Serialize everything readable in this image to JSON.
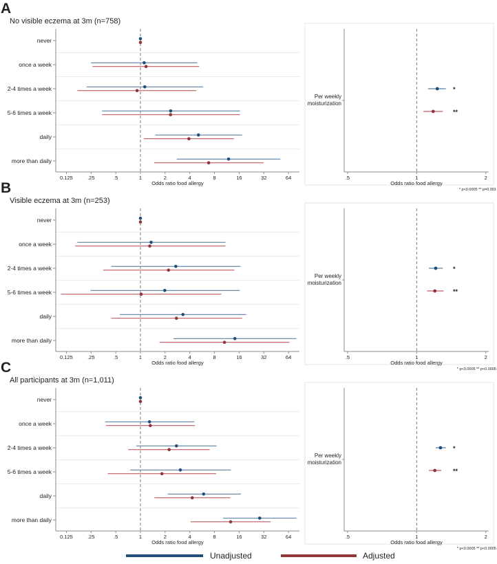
{
  "chart_data": [
    {
      "type": "forest",
      "panel_letter": "A",
      "title": "No visible eczema at 3m (n=758)",
      "categories": [
        "never",
        "once a week",
        "2-4 times a week",
        "5-6 times a week",
        "daily",
        "more than daily"
      ],
      "xlabel": "Odds ratio food allergy",
      "xticks": [
        "0.125",
        ".25",
        ".5",
        "1",
        "2",
        "4",
        "8",
        "16",
        "32",
        "64"
      ],
      "xtick_values": [
        0.125,
        0.25,
        0.5,
        1,
        2,
        4,
        8,
        16,
        32,
        64
      ],
      "series": [
        {
          "name": "Unadjusted",
          "or": [
            1,
            1.11,
            1.13,
            2.34,
            5.1,
            11.9
          ],
          "lo": [
            1,
            0.25,
            0.22,
            0.34,
            1.51,
            2.77
          ],
          "hi": [
            1,
            4.95,
            5.8,
            16.4,
            17.4,
            51
          ]
        },
        {
          "name": "Adjusted",
          "or": [
            1,
            1.17,
            0.91,
            2.33,
            3.9,
            6.8
          ],
          "lo": [
            1,
            0.26,
            0.17,
            0.34,
            1.1,
            1.47
          ],
          "hi": [
            1,
            5.2,
            4.8,
            16.4,
            13.8,
            31.8
          ]
        }
      ],
      "summary": {
        "label_lines": [
          "Per weekly",
          "moisturization"
        ],
        "xlabel": "Odds ratio food allergy",
        "xticks": [
          ".5",
          "1",
          "2"
        ],
        "xtick_values": [
          0.5,
          1,
          2
        ],
        "unadjusted": {
          "or": 1.23,
          "lo": 1.12,
          "hi": 1.34,
          "sig": "*"
        },
        "adjusted": {
          "or": 1.18,
          "lo": 1.07,
          "hi": 1.3,
          "sig": "**"
        },
        "footnote": "* p<0.0005   ** p=0.001"
      }
    },
    {
      "type": "forest",
      "panel_letter": "B",
      "title": "Visible eczema at 3m (n=253)",
      "categories": [
        "never",
        "once a week",
        "2-4 times a week",
        "5-6 times a week",
        "daily",
        "more than daily"
      ],
      "xlabel": "Odds ratio food allergy",
      "xticks": [
        "0.125",
        ".25",
        ".5",
        "1",
        "2",
        "4",
        "8",
        "16",
        "32",
        "64"
      ],
      "xtick_values": [
        0.125,
        0.25,
        0.5,
        1,
        2,
        4,
        8,
        16,
        32,
        64
      ],
      "series": [
        {
          "name": "Unadjusted",
          "or": [
            1,
            1.35,
            2.7,
            1.98,
            3.3,
            14.2
          ],
          "lo": [
            1,
            0.17,
            0.44,
            0.245,
            0.56,
            2.53
          ],
          "hi": [
            1,
            10.9,
            16.6,
            16.3,
            19.5,
            80
          ]
        },
        {
          "name": "Adjusted",
          "or": [
            1,
            1.3,
            2.2,
            1.02,
            2.75,
            10.6
          ],
          "lo": [
            1,
            0.16,
            0.35,
            0.107,
            0.44,
            1.71
          ],
          "hi": [
            1,
            10.9,
            14.0,
            9.7,
            17.4,
            66
          ]
        }
      ],
      "summary": {
        "label_lines": [
          "Per weekly",
          "moisturization"
        ],
        "xlabel": "Odds ratio food allergy",
        "xticks": [
          ".5",
          "1",
          "2"
        ],
        "xtick_values": [
          0.5,
          1,
          2
        ],
        "unadjusted": {
          "or": 1.21,
          "lo": 1.13,
          "hi": 1.3,
          "sig": "*"
        },
        "adjusted": {
          "or": 1.2,
          "lo": 1.11,
          "hi": 1.31,
          "sig": "**"
        },
        "footnote": "* p<0.0005   ** p<0.0005"
      }
    },
    {
      "type": "forest",
      "panel_letter": "C",
      "title": "All participants at 3m (n=1,011)",
      "categories": [
        "never",
        "once a week",
        "2-4 times a week",
        "5-6 times a week",
        "daily",
        "more than daily"
      ],
      "xlabel": "Odds ratio food allergy",
      "xticks": [
        "0.125",
        ".25",
        ".5",
        "1",
        "2",
        "4",
        "8",
        "16",
        "32",
        "64"
      ],
      "xtick_values": [
        0.125,
        0.25,
        0.5,
        1,
        2,
        4,
        8,
        16,
        32,
        64
      ],
      "series": [
        {
          "name": "Unadjusted",
          "or": [
            1,
            1.29,
            2.75,
            3.07,
            5.9,
            28.5
          ],
          "lo": [
            1,
            0.37,
            0.89,
            0.75,
            2.14,
            10.2
          ],
          "hi": [
            1,
            4.54,
            8.5,
            12.7,
            16.8,
            80
          ]
        },
        {
          "name": "Adjusted",
          "or": [
            1,
            1.32,
            2.24,
            1.83,
            4.29,
            12.6
          ],
          "lo": [
            1,
            0.38,
            0.71,
            0.4,
            1.48,
            4.1
          ],
          "hi": [
            1,
            4.63,
            7.0,
            8.4,
            12.5,
            38.7
          ]
        }
      ],
      "summary": {
        "label_lines": [
          "Per weekly",
          "moisturization"
        ],
        "xlabel": "Odds ratio food allergy",
        "xticks": [
          ".5",
          "1",
          "2"
        ],
        "xtick_values": [
          0.5,
          1,
          2
        ],
        "unadjusted": {
          "or": 1.27,
          "lo": 1.21,
          "hi": 1.34,
          "sig": "*"
        },
        "adjusted": {
          "or": 1.2,
          "lo": 1.13,
          "hi": 1.28,
          "sig": "**"
        },
        "footnote": "* p<0.0005   ** p<0.0005"
      }
    }
  ],
  "legend": {
    "items": [
      {
        "label": "Unadjusted",
        "color": "#1f4e79"
      },
      {
        "label": "Adjusted",
        "color": "#90353b"
      }
    ]
  },
  "colors": {
    "unadjusted_point": "#1f4e79",
    "unadjusted_line": "#5b7fa6",
    "adjusted_point": "#90353b",
    "adjusted_line": "#c05a62"
  }
}
